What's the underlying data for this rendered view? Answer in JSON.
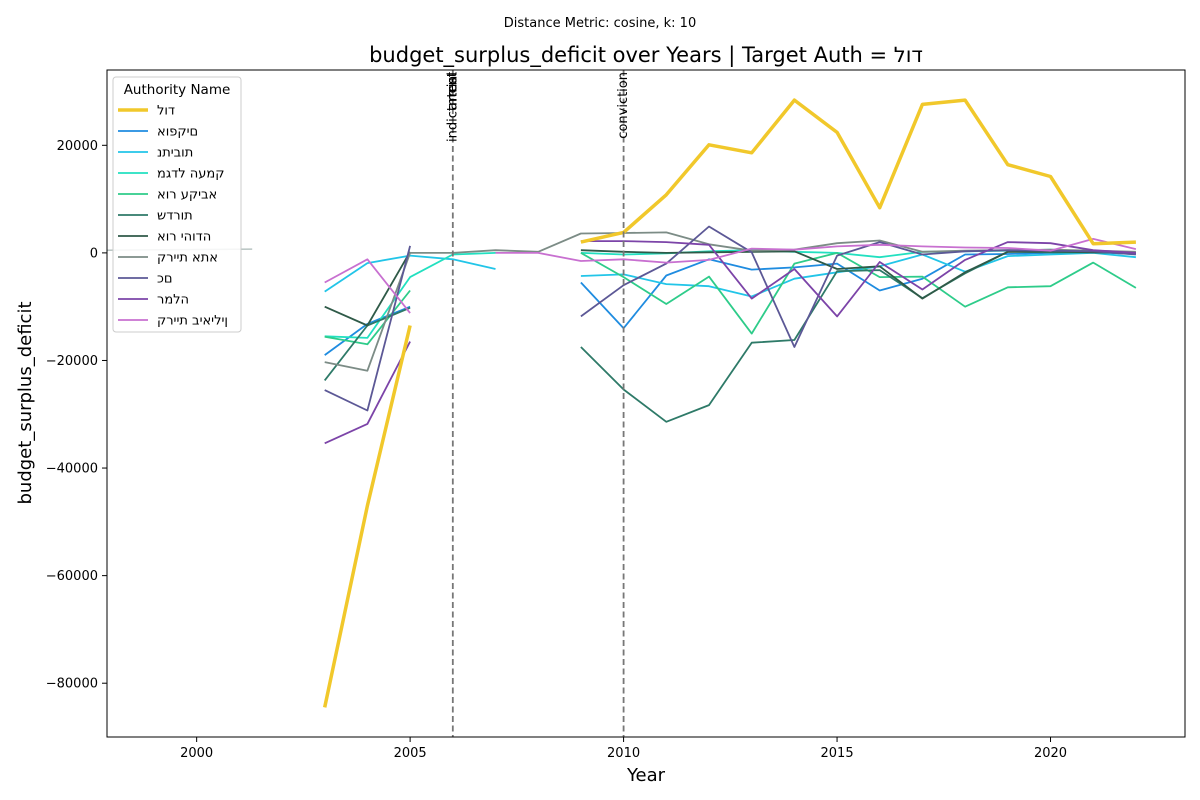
{
  "chart_data": {
    "type": "line",
    "suptitle": "Distance Metric: cosine, k: 10",
    "title": "budget_surplus_deficit over Years | Target Auth = דול",
    "xlabel": "Year",
    "ylabel": "budget_surplus_deficit",
    "xlim": [
      1997.9,
      2023.15
    ],
    "ylim": [
      -90000,
      34000
    ],
    "xticks": [
      2000,
      2005,
      2010,
      2015,
      2020
    ],
    "yticks": [
      -80000,
      -60000,
      -40000,
      -20000,
      0,
      20000
    ],
    "xtick_labels": [
      "2000",
      "2005",
      "2010",
      "2015",
      "2020"
    ],
    "ytick_labels": [
      "−80000",
      "−60000",
      "−40000",
      "−20000",
      "0",
      "20000"
    ],
    "grid": false,
    "legend_title": "Authority Name",
    "legend_position": "top-left",
    "events": [
      {
        "x": 2006,
        "label": "indictment"
      },
      {
        "x": 2006,
        "label": "arrest"
      },
      {
        "x": 2006,
        "label": "trial"
      },
      {
        "x": 2010,
        "label": "conviction"
      }
    ],
    "series": [
      {
        "name": "דול",
        "color": "#f1c82b",
        "width": 3.5,
        "segments": [
          [
            [
              2003,
              -84500
            ],
            [
              2004,
              -47000
            ],
            [
              2005,
              -13500
            ]
          ],
          [
            [
              2009,
              2000
            ],
            [
              2010,
              3800
            ],
            [
              2011,
              10800
            ],
            [
              2012,
              20100
            ],
            [
              2013,
              18600
            ],
            [
              2014,
              28400
            ],
            [
              2015,
              22400
            ],
            [
              2016,
              8400
            ],
            [
              2017,
              27600
            ],
            [
              2018,
              28400
            ],
            [
              2019,
              16400
            ],
            [
              2020,
              14200
            ],
            [
              2021,
              1700
            ],
            [
              2022,
              2000
            ]
          ]
        ]
      },
      {
        "name": "םיקפוא",
        "color": "#1f8ce0",
        "width": 1.8,
        "segments": [
          [
            [
              2003,
              -19000
            ],
            [
              2004,
              -13200
            ],
            [
              2005,
              -10000
            ]
          ],
          [
            [
              2009,
              -5500
            ],
            [
              2010,
              -14000
            ],
            [
              2011,
              -4200
            ],
            [
              2012,
              -1200
            ],
            [
              2013,
              -3100
            ],
            [
              2014,
              -2700
            ],
            [
              2015,
              -2000
            ],
            [
              2016,
              -7000
            ],
            [
              2017,
              -4800
            ],
            [
              2018,
              -300
            ],
            [
              2019,
              -200
            ],
            [
              2020,
              0
            ],
            [
              2021,
              100
            ],
            [
              2022,
              -200
            ]
          ]
        ]
      },
      {
        "name": "תוביתנ",
        "color": "#22c5e8",
        "width": 1.8,
        "segments": [
          [
            [
              2003,
              -7200
            ],
            [
              2004,
              -1900
            ],
            [
              2005,
              -500
            ],
            [
              2006,
              -1200
            ],
            [
              2007,
              -3000
            ]
          ],
          [
            [
              2009,
              -4300
            ],
            [
              2010,
              -4000
            ],
            [
              2011,
              -5800
            ],
            [
              2012,
              -6200
            ],
            [
              2013,
              -8100
            ],
            [
              2014,
              -4800
            ],
            [
              2015,
              -3600
            ],
            [
              2016,
              -2500
            ],
            [
              2017,
              -300
            ],
            [
              2018,
              -3500
            ],
            [
              2019,
              -600
            ],
            [
              2020,
              -300
            ],
            [
              2021,
              0
            ],
            [
              2022,
              -800
            ]
          ]
        ]
      },
      {
        "name": "קמעה לדגמ",
        "color": "#22e0c0",
        "width": 1.8,
        "segments": [
          [
            [
              2003,
              -15500
            ],
            [
              2004,
              -15800
            ],
            [
              2005,
              -4500
            ],
            [
              2006,
              -300
            ],
            [
              2007,
              0
            ]
          ],
          [
            [
              2009,
              0
            ],
            [
              2010,
              -300
            ],
            [
              2011,
              -100
            ],
            [
              2012,
              300
            ],
            [
              2013,
              500
            ],
            [
              2014,
              200
            ],
            [
              2015,
              0
            ],
            [
              2016,
              -800
            ],
            [
              2017,
              200
            ],
            [
              2018,
              300
            ],
            [
              2019,
              400
            ],
            [
              2020,
              600
            ],
            [
              2021,
              300
            ],
            [
              2022,
              0
            ]
          ]
        ]
      },
      {
        "name": "אביקע רוא",
        "color": "#2ecc8a",
        "width": 1.8,
        "segments": [
          [
            [
              2003,
              -15600
            ],
            [
              2004,
              -17000
            ],
            [
              2005,
              -7000
            ]
          ],
          [
            [
              2009,
              0
            ],
            [
              2010,
              -4500
            ],
            [
              2011,
              -9500
            ],
            [
              2012,
              -4400
            ],
            [
              2013,
              -15000
            ],
            [
              2014,
              -2000
            ],
            [
              2015,
              0
            ],
            [
              2016,
              -4500
            ],
            [
              2017,
              -4400
            ],
            [
              2018,
              -10000
            ],
            [
              2019,
              -6400
            ],
            [
              2020,
              -6200
            ],
            [
              2021,
              -1800
            ],
            [
              2022,
              -6500
            ]
          ]
        ]
      },
      {
        "name": "תורדש",
        "color": "#2e7a68",
        "width": 1.8,
        "segments": [
          [
            [
              2003,
              -23700
            ],
            [
              2004,
              -13500
            ],
            [
              2005,
              -10200
            ]
          ],
          [
            [
              2009,
              -17500
            ],
            [
              2010,
              -25400
            ],
            [
              2011,
              -31400
            ],
            [
              2012,
              -28300
            ],
            [
              2013,
              -16700
            ],
            [
              2014,
              -16200
            ],
            [
              2015,
              -3400
            ],
            [
              2016,
              -3200
            ],
            [
              2017,
              -8400
            ],
            [
              2018,
              -3800
            ],
            [
              2019,
              200
            ],
            [
              2020,
              100
            ],
            [
              2021,
              100
            ],
            [
              2022,
              0
            ]
          ]
        ]
      },
      {
        "name": "הדוהי רוא",
        "color": "#2f5a48",
        "width": 1.8,
        "segments": [
          [
            [
              2003,
              -10000
            ],
            [
              2004,
              -13500
            ],
            [
              2005,
              200
            ]
          ],
          [
            [
              2009,
              500
            ],
            [
              2010,
              200
            ],
            [
              2011,
              0
            ],
            [
              2012,
              100
            ],
            [
              2013,
              200
            ],
            [
              2014,
              300
            ],
            [
              2015,
              -3000
            ],
            [
              2016,
              -2500
            ],
            [
              2017,
              -8500
            ],
            [
              2018,
              -3600
            ],
            [
              2019,
              200
            ],
            [
              2020,
              300
            ],
            [
              2021,
              100
            ],
            [
              2022,
              0
            ]
          ]
        ]
      },
      {
        "name": "אתא תיירק",
        "color": "#7c8c86",
        "width": 1.8,
        "segments": [
          [
            [
              2003,
              -20300
            ],
            [
              2004,
              -21900
            ],
            [
              2005,
              0
            ],
            [
              2006,
              0
            ],
            [
              2007,
              500
            ],
            [
              2008,
              200
            ],
            [
              2009,
              3600
            ],
            [
              2010,
              3700
            ],
            [
              2011,
              3800
            ],
            [
              2012,
              1600
            ],
            [
              2013,
              400
            ],
            [
              2014,
              600
            ],
            [
              2015,
              1800
            ],
            [
              2016,
              2300
            ],
            [
              2017,
              200
            ],
            [
              2018,
              400
            ],
            [
              2019,
              500
            ],
            [
              2020,
              600
            ],
            [
              2021,
              400
            ],
            [
              2022,
              200
            ]
          ]
        ]
      },
      {
        "name": "םכ",
        "color": "#5c5896",
        "width": 1.8,
        "segments": [
          [
            [
              2003,
              -25500
            ],
            [
              2004,
              -29300
            ],
            [
              2005,
              1300
            ]
          ],
          [
            [
              2009,
              -11800
            ],
            [
              2010,
              -6000
            ],
            [
              2011,
              -2000
            ],
            [
              2012,
              4900
            ],
            [
              2013,
              100
            ],
            [
              2014,
              -17500
            ],
            [
              2015,
              -500
            ],
            [
              2016,
              2000
            ],
            [
              2017,
              -300
            ],
            [
              2018,
              300
            ],
            [
              2019,
              500
            ],
            [
              2020,
              400
            ],
            [
              2021,
              300
            ],
            [
              2022,
              -300
            ]
          ]
        ]
      },
      {
        "name": "הלמר",
        "color": "#7c44a8",
        "width": 1.8,
        "segments": [
          [
            [
              2003,
              -35400
            ],
            [
              2004,
              -31800
            ],
            [
              2005,
              -16500
            ]
          ],
          [
            [
              2009,
              2200
            ],
            [
              2010,
              2200
            ],
            [
              2011,
              2000
            ],
            [
              2012,
              1500
            ],
            [
              2013,
              -8500
            ],
            [
              2014,
              -3000
            ],
            [
              2015,
              -11800
            ],
            [
              2016,
              -1700
            ],
            [
              2017,
              -6800
            ],
            [
              2018,
              -1300
            ],
            [
              2019,
              2000
            ],
            [
              2020,
              1800
            ],
            [
              2021,
              500
            ],
            [
              2022,
              0
            ]
          ]
        ]
      },
      {
        "name": "ןיליאיב תיירק",
        "color": "#c870d0",
        "width": 1.8,
        "segments": [
          [
            [
              2003,
              -5500
            ],
            [
              2004,
              -1200
            ],
            [
              2005,
              -11200
            ]
          ],
          [
            [
              2007,
              0
            ],
            [
              2008,
              0
            ],
            [
              2009,
              -1500
            ],
            [
              2010,
              -1200
            ],
            [
              2011,
              -1800
            ],
            [
              2012,
              -1300
            ],
            [
              2013,
              800
            ],
            [
              2014,
              600
            ],
            [
              2015,
              1200
            ],
            [
              2016,
              1500
            ],
            [
              2017,
              1200
            ],
            [
              2018,
              1000
            ],
            [
              2019,
              900
            ],
            [
              2020,
              400
            ],
            [
              2021,
              2600
            ],
            [
              2022,
              700
            ]
          ]
        ]
      }
    ],
    "background_series": [
      {
        "color": "#b8c4c2",
        "width": 1.5,
        "segments": [
          [
            [
              1997.9,
              500
            ],
            [
              2001.3,
              700
            ]
          ]
        ]
      }
    ]
  }
}
